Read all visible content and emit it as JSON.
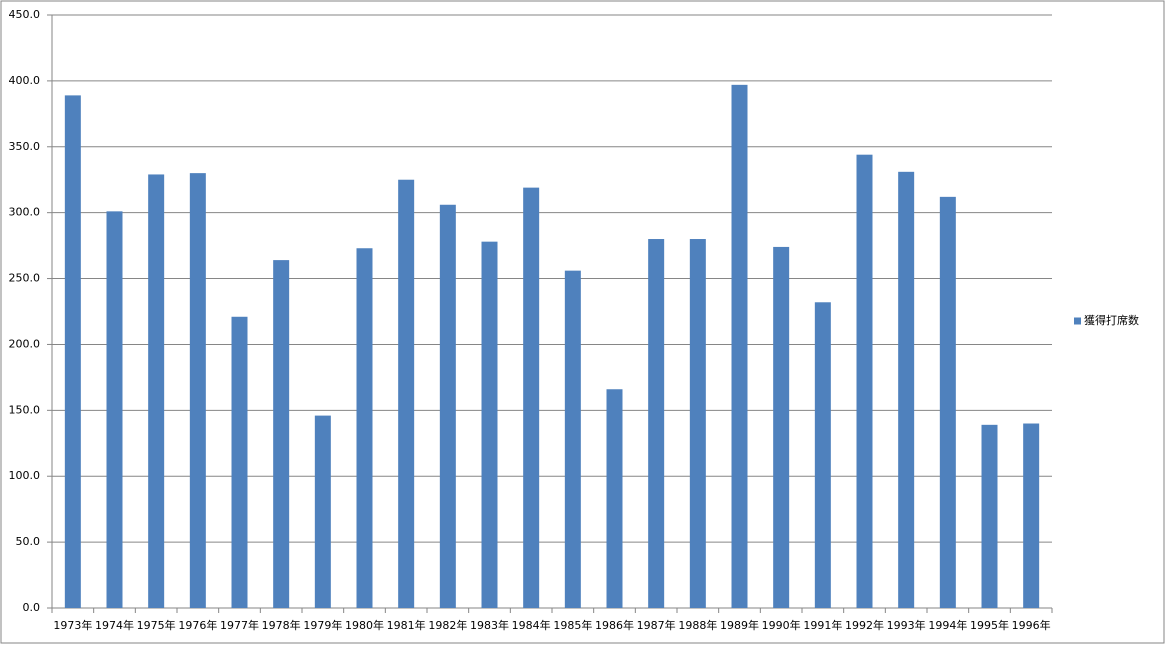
{
  "chart_data": {
    "type": "bar",
    "categories": [
      "1973年",
      "1974年",
      "1975年",
      "1976年",
      "1977年",
      "1978年",
      "1979年",
      "1980年",
      "1981年",
      "1982年",
      "1983年",
      "1984年",
      "1985年",
      "1986年",
      "1987年",
      "1988年",
      "1989年",
      "1990年",
      "1991年",
      "1992年",
      "1993年",
      "1994年",
      "1995年",
      "1996年"
    ],
    "series": [
      {
        "name": "獲得打席数",
        "color": "#4f81bd",
        "values": [
          389,
          301,
          329,
          330,
          221,
          264,
          146,
          273,
          325,
          306,
          278,
          319,
          256,
          166,
          280,
          280,
          397,
          274,
          232,
          344,
          331,
          312,
          139,
          140
        ]
      }
    ],
    "ylim": [
      0,
      450
    ],
    "yticks": [
      {
        "value": 0,
        "label": "0.0"
      },
      {
        "value": 50,
        "label": "50.0"
      },
      {
        "value": 100,
        "label": "100.0"
      },
      {
        "value": 150,
        "label": "150.0"
      },
      {
        "value": 200,
        "label": "200.0"
      },
      {
        "value": 250,
        "label": "250.0"
      },
      {
        "value": 300,
        "label": "300.0"
      },
      {
        "value": 350,
        "label": "350.0"
      },
      {
        "value": 400,
        "label": "400.0"
      },
      {
        "value": 450,
        "label": "450.0"
      }
    ],
    "grid": true,
    "legend": "right"
  }
}
